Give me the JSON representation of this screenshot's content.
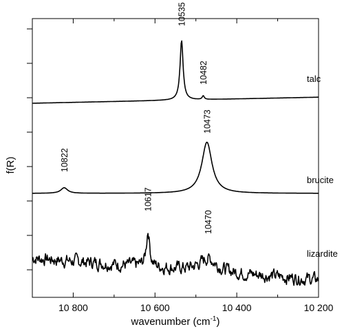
{
  "chart_data": {
    "type": "line",
    "xlabel": "wavenumber (cm",
    "xlabel_sup": "-1",
    "xlabel_close": ")",
    "ylabel": "f(R)",
    "xlim": [
      10900,
      10200
    ],
    "x_ticks": [
      {
        "value": 10800,
        "label": "10 800"
      },
      {
        "value": 10600,
        "label": "10 600"
      },
      {
        "value": 10400,
        "label": "10 400"
      },
      {
        "value": 10200,
        "label": "10 200"
      }
    ],
    "x_minor_ticks": [
      10700,
      10500,
      10300
    ],
    "y_tick_count": 8,
    "series": [
      {
        "name": "talc",
        "baseline": [
          [
            10900,
            0.0
          ],
          [
            10200,
            0.2
          ]
        ],
        "peaks": [
          {
            "center": 10535,
            "height": 1.97,
            "width": 4.5
          },
          {
            "center": 10482,
            "height": 0.12,
            "width": 3
          }
        ]
      },
      {
        "name": "brucite",
        "baseline": [
          [
            10900,
            0.0
          ],
          [
            10200,
            0.0
          ]
        ],
        "peaks": [
          {
            "center": 10822,
            "height": 0.17,
            "width": 10
          },
          {
            "center": 10473,
            "height": 1.55,
            "width": 15
          }
        ]
      },
      {
        "name": "lizardite",
        "baseline": [
          [
            10900,
            0.55
          ],
          [
            10200,
            -0.2
          ]
        ],
        "noise": 0.22,
        "peaks": [
          {
            "center": 10617,
            "height": 1.25,
            "width": 5
          },
          {
            "center": 10470,
            "height": 0.45,
            "width": 25
          }
        ]
      }
    ],
    "peak_labels": [
      {
        "series": "talc",
        "x": 10535,
        "label": "10535"
      },
      {
        "series": "talc",
        "x": 10482,
        "label": "10482"
      },
      {
        "series": "brucite",
        "x": 10822,
        "label": "10822"
      },
      {
        "series": "brucite",
        "x": 10473,
        "label": "10473"
      },
      {
        "series": "lizardite",
        "x": 10617,
        "label": "10617"
      },
      {
        "series": "lizardite",
        "x": 10470,
        "label": "10470"
      }
    ]
  }
}
